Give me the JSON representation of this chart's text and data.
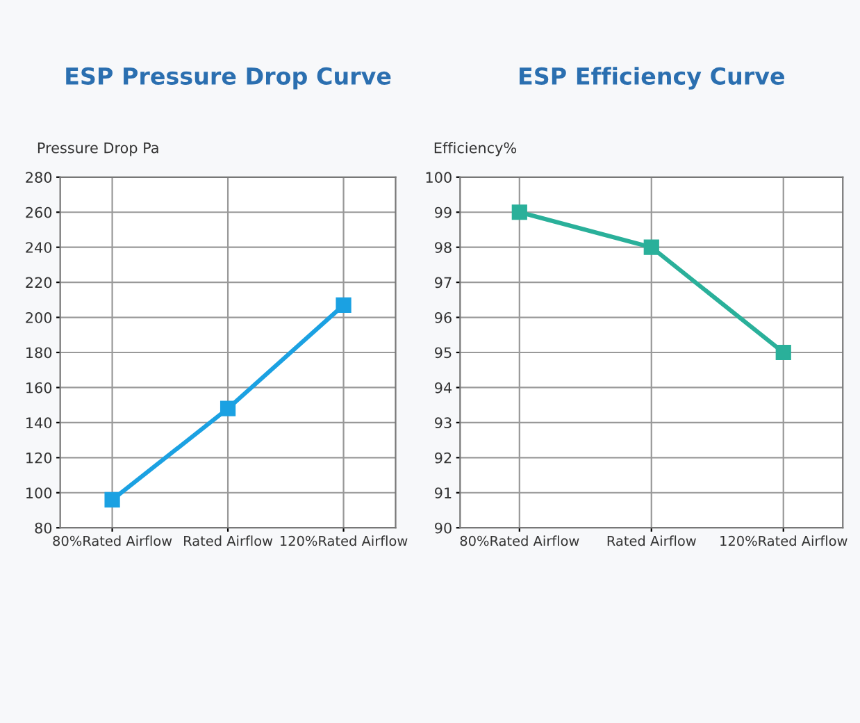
{
  "chart_data": [
    {
      "type": "line",
      "title": "ESP Pressure Drop Curve",
      "ylabel": "Pressure Drop Pa",
      "categories": [
        "80%Rated Airflow",
        "Rated Airflow",
        "120%Rated Airflow"
      ],
      "series": [
        {
          "color": "#1ba1e2",
          "values": [
            96,
            148,
            207
          ]
        }
      ],
      "ylim": [
        80,
        280
      ],
      "yticks": [
        80,
        100,
        120,
        140,
        160,
        180,
        200,
        220,
        240,
        260,
        280
      ],
      "grid": true,
      "marker": "square",
      "line_style": "solid"
    },
    {
      "type": "line",
      "title": "ESP Efficiency Curve",
      "ylabel": "Efficiency%",
      "categories": [
        "80%Rated Airflow",
        "Rated Airflow",
        "120%Rated Airflow"
      ],
      "series": [
        {
          "color": "#2ab09a",
          "values": [
            99,
            98,
            95
          ]
        }
      ],
      "ylim": [
        90,
        100
      ],
      "yticks": [
        90,
        91,
        92,
        93,
        94,
        95,
        96,
        97,
        98,
        99,
        100
      ],
      "grid": true,
      "marker": "square",
      "line_style": "solid"
    }
  ]
}
